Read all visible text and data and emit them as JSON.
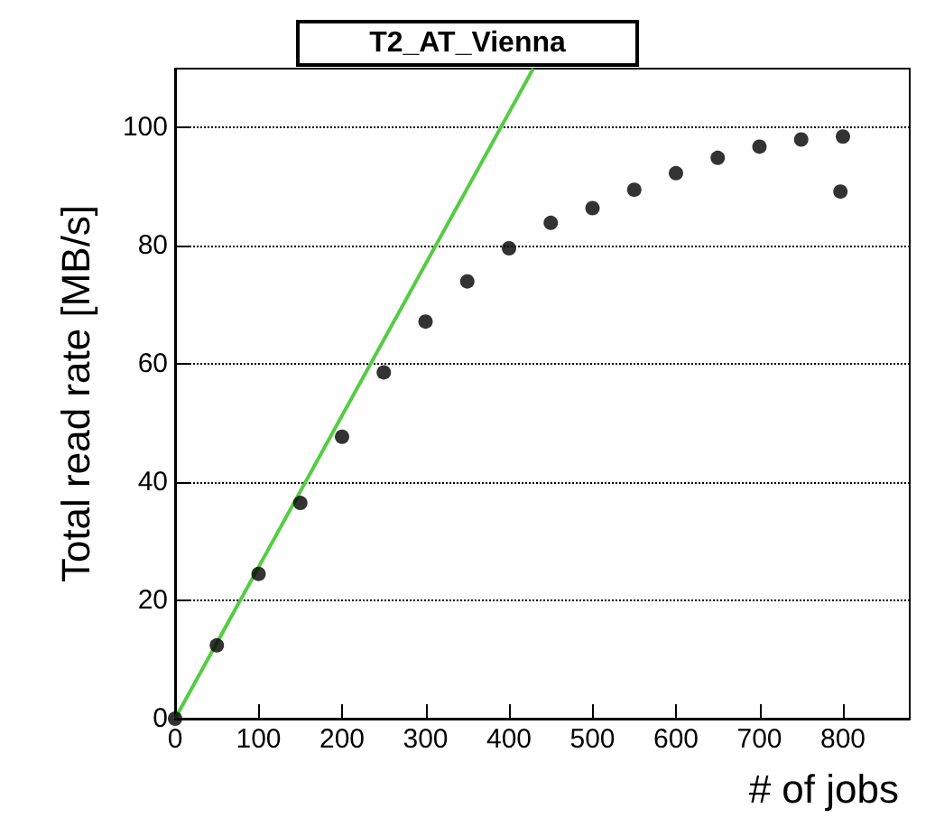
{
  "chart_data": {
    "type": "scatter",
    "title": "T2_AT_Vienna",
    "xlabel": "# of jobs",
    "ylabel": "Total read rate [MB/s]",
    "series": [
      {
        "color": "#000000",
        "x": [
          0,
          50,
          100,
          150,
          200,
          250,
          300,
          350,
          400,
          450,
          500,
          550,
          600,
          650,
          700,
          750,
          800,
          797
        ],
        "values": [
          0,
          12.4,
          24.5,
          36.5,
          47.7,
          58.6,
          67.2,
          74.0,
          79.6,
          83.9,
          86.4,
          89.5,
          92.3,
          94.9,
          96.8,
          98.0,
          98.5,
          89.2
        ]
      },
      {
        "type": "line",
        "marker": "none",
        "color": "#55cc44",
        "x": [
          0,
          429
        ],
        "values": [
          0,
          110
        ]
      }
    ],
    "xlim": [
      0,
      880
    ],
    "ylim": [
      0,
      110
    ],
    "xticks": [
      0,
      100,
      200,
      300,
      400,
      500,
      600,
      700,
      800
    ],
    "yticks": [
      0,
      20,
      40,
      60,
      80,
      100
    ],
    "grid": "y",
    "marker": "circle"
  }
}
